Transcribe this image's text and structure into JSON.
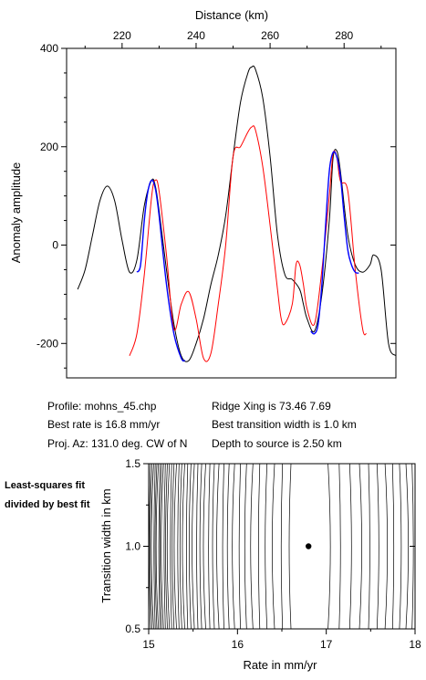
{
  "chart_data": [
    {
      "type": "line",
      "xlabel": "Distance (km)",
      "ylabel": "Anomaly amplitude",
      "xlim": [
        205,
        294
      ],
      "ylim": [
        -270,
        400
      ],
      "xticks": [
        220,
        240,
        260,
        280
      ],
      "yticks": [
        -200,
        0,
        200,
        400
      ],
      "xaxis_position": "top",
      "grid": false,
      "series": [
        {
          "color": "#000000",
          "points": [
            [
              208,
              -90
            ],
            [
              210,
              -50
            ],
            [
              212,
              20
            ],
            [
              214,
              90
            ],
            [
              216,
              120
            ],
            [
              218,
              90
            ],
            [
              220,
              10
            ],
            [
              222,
              -55
            ],
            [
              224,
              -30
            ],
            [
              226,
              80
            ],
            [
              228,
              132
            ],
            [
              229,
              120
            ],
            [
              230,
              70
            ],
            [
              232,
              -50
            ],
            [
              234,
              -160
            ],
            [
              236,
              -225
            ],
            [
              238,
              -235
            ],
            [
              240,
              -200
            ],
            [
              242,
              -150
            ],
            [
              244,
              -80
            ],
            [
              246,
              -20
            ],
            [
              248,
              60
            ],
            [
              250,
              180
            ],
            [
              252,
              290
            ],
            [
              254,
              350
            ],
            [
              255,
              362
            ],
            [
              256,
              358
            ],
            [
              258,
              300
            ],
            [
              260,
              180
            ],
            [
              262,
              20
            ],
            [
              264,
              -60
            ],
            [
              266,
              -70
            ],
            [
              268,
              -90
            ],
            [
              269,
              -120
            ],
            [
              270,
              -150
            ],
            [
              272,
              -175
            ],
            [
              274,
              -100
            ],
            [
              276,
              50
            ],
            [
              277,
              175
            ],
            [
              278,
              192
            ],
            [
              279,
              150
            ],
            [
              281,
              20
            ],
            [
              283,
              -40
            ],
            [
              285,
              -55
            ],
            [
              287,
              -40
            ],
            [
              288,
              -20
            ],
            [
              290,
              -50
            ],
            [
              292,
              -200
            ],
            [
              294,
              -225
            ]
          ]
        },
        {
          "color": "#ff0000",
          "points": [
            [
              222,
              -225
            ],
            [
              224,
              -180
            ],
            [
              226,
              -60
            ],
            [
              228,
              100
            ],
            [
              229,
              132
            ],
            [
              230,
              110
            ],
            [
              232,
              -20
            ],
            [
              234,
              -170
            ],
            [
              236,
              -120
            ],
            [
              238,
              -95
            ],
            [
              240,
              -150
            ],
            [
              242,
              -230
            ],
            [
              244,
              -220
            ],
            [
              246,
              -120
            ],
            [
              248,
              0
            ],
            [
              250,
              180
            ],
            [
              252,
              200
            ],
            [
              254,
              230
            ],
            [
              255,
              240
            ],
            [
              256,
              235
            ],
            [
              258,
              160
            ],
            [
              260,
              40
            ],
            [
              262,
              -90
            ],
            [
              263,
              -150
            ],
            [
              264,
              -160
            ],
            [
              266,
              -120
            ],
            [
              267,
              -40
            ],
            [
              268,
              -40
            ],
            [
              269,
              -80
            ],
            [
              270,
              -130
            ],
            [
              272,
              -160
            ],
            [
              274,
              -50
            ],
            [
              276,
              100
            ],
            [
              277,
              185
            ],
            [
              278,
              180
            ],
            [
              279,
              130
            ],
            [
              281,
              110
            ],
            [
              283,
              -50
            ],
            [
              285,
              -170
            ],
            [
              286,
              -180
            ]
          ]
        },
        {
          "color": "#0000ff",
          "points": [
            [
              224,
              -55
            ],
            [
              225,
              -40
            ],
            [
              226,
              50
            ],
            [
              227,
              110
            ],
            [
              228,
              132
            ],
            [
              229,
              115
            ],
            [
              230,
              60
            ],
            [
              232,
              -80
            ],
            [
              234,
              -180
            ],
            [
              236,
              -230
            ],
            [
              237,
              -235
            ],
            [
              271,
              -175
            ],
            [
              272,
              -180
            ],
            [
              273,
              -160
            ],
            [
              274,
              -80
            ],
            [
              275,
              40
            ],
            [
              276,
              150
            ],
            [
              277,
              188
            ],
            [
              278,
              180
            ],
            [
              279,
              140
            ],
            [
              280,
              60
            ],
            [
              281,
              -10
            ],
            [
              282,
              -40
            ],
            [
              283,
              -55
            ],
            [
              284,
              -57
            ]
          ]
        }
      ]
    },
    {
      "type": "contour",
      "xlabel": "Rate in mm/yr",
      "ylabel": "Transition width in km",
      "xlim": [
        15,
        18
      ],
      "ylim": [
        0.5,
        1.5
      ],
      "xticks": [
        "15",
        "16",
        "17",
        "18"
      ],
      "yticks": [
        "0.5",
        "1.0",
        "1.5"
      ],
      "best_point": {
        "x": 16.8,
        "y": 1.0
      }
    }
  ],
  "profile_info": {
    "profile": "Profile: mohns_45.chp",
    "best_rate": "Best rate is 16.8 mm/yr",
    "proj_az": "Proj. Az: 131.0 deg. CW of N",
    "ridge_xing": "Ridge Xing is 73.46 7.69",
    "best_transition": "Best transition width is 1.0 km",
    "depth": "Depth to source is   2.50 km"
  },
  "side_label": "Least-squares fit divided by best fit"
}
